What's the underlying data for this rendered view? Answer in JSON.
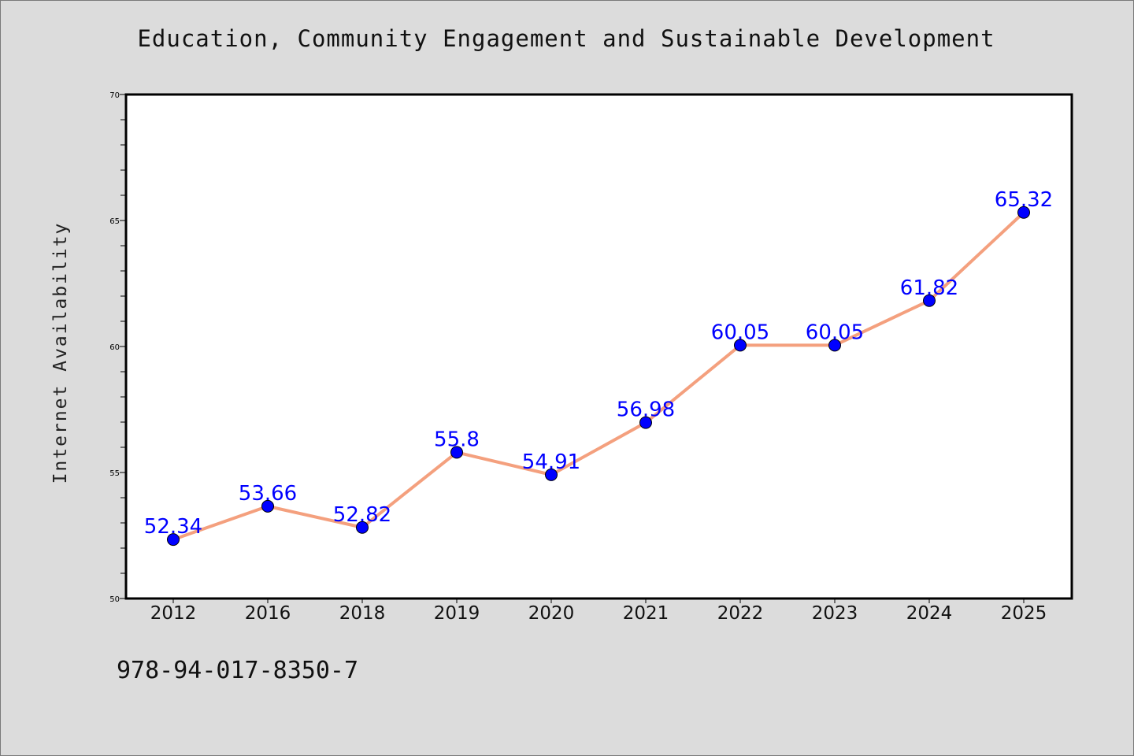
{
  "chart_data": {
    "type": "line",
    "title": "Education, Community Engagement and Sustainable Development",
    "xlabel": "",
    "ylabel": "Internet Availability",
    "categories": [
      "2012",
      "2016",
      "2018",
      "2019",
      "2020",
      "2021",
      "2022",
      "2023",
      "2024",
      "2025"
    ],
    "series": [
      {
        "values": [
          52.34,
          53.66,
          52.82,
          55.8,
          54.91,
          56.98,
          60.05,
          60.05,
          61.82,
          65.32
        ],
        "line_color": "#f4a07e",
        "marker_color": "#0000ff",
        "label_color": "#0000ff"
      }
    ],
    "data_labels": [
      "52.34",
      "53.66",
      "52.82",
      "55.8",
      "54.91",
      "56.98",
      "60.05",
      "60.05",
      "61.82",
      "65.32"
    ],
    "ylim": [
      50,
      70
    ],
    "yticks": [
      "50",
      "55",
      "60",
      "65",
      "70"
    ],
    "grid": false,
    "legend": "none"
  },
  "footer": {
    "isbn": "978-94-017-8350-7"
  }
}
